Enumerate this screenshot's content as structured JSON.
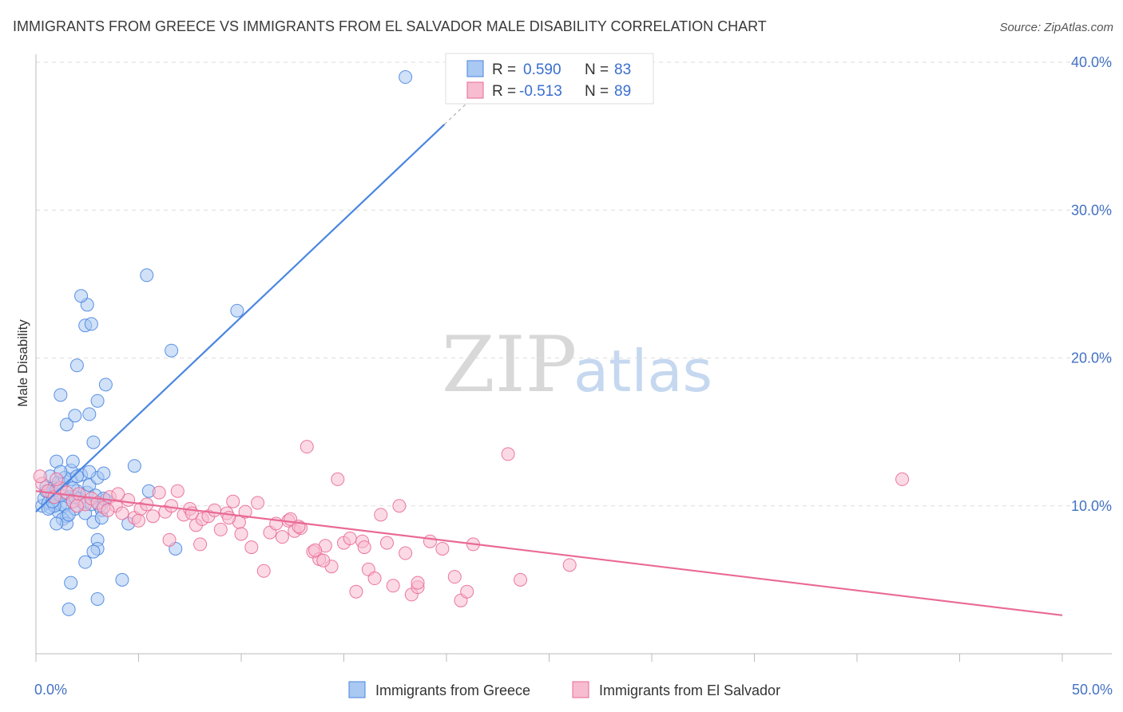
{
  "chart_data": {
    "type": "scatter",
    "title": "IMMIGRANTS FROM GREECE VS IMMIGRANTS FROM EL SALVADOR MALE DISABILITY CORRELATION CHART",
    "source": "Source: ZipAtlas.com",
    "ylabel": "Male Disability",
    "xlim": [
      0,
      50
    ],
    "ylim": [
      0,
      40
    ],
    "x_tick_labels": [
      "0.0%",
      "50.0%"
    ],
    "y_ticks": [
      10,
      20,
      30,
      40
    ],
    "y_tick_labels": [
      "10.0%",
      "20.0%",
      "30.0%",
      "40.0%"
    ],
    "grid": true,
    "watermark": {
      "zip": "ZIP",
      "atlas": "atlas"
    },
    "legend": {
      "r_label": "R =",
      "n_label": "N =",
      "entries": [
        {
          "name": "Immigrants from Greece",
          "r": "0.590",
          "n": "83",
          "color": "#4a86e0"
        },
        {
          "name": "Immigrants from El Salvador",
          "r": "-0.513",
          "n": "89",
          "color": "#e96a95"
        }
      ]
    },
    "series": [
      {
        "name": "Immigrants from Greece",
        "color": "#4a86e0",
        "fill": "#a9c8f2",
        "trend": {
          "x0": 0,
          "y0": 9.6,
          "x1": 19.9,
          "y1": 35.8,
          "dash_to_x": 22.0
        },
        "points": [
          [
            0.3,
            10.0
          ],
          [
            0.4,
            10.5
          ],
          [
            0.5,
            11.0
          ],
          [
            0.6,
            10.2
          ],
          [
            0.7,
            9.9
          ],
          [
            0.8,
            10.8
          ],
          [
            0.9,
            11.2
          ],
          [
            1.0,
            10.4
          ],
          [
            1.1,
            9.6
          ],
          [
            1.2,
            10.1
          ],
          [
            1.3,
            11.5
          ],
          [
            1.4,
            10.0
          ],
          [
            1.5,
            9.3
          ],
          [
            1.6,
            10.6
          ],
          [
            1.7,
            11.8
          ],
          [
            1.8,
            10.3
          ],
          [
            1.9,
            9.8
          ],
          [
            2.0,
            11.0
          ],
          [
            2.1,
            10.5
          ],
          [
            2.2,
            12.1
          ],
          [
            2.3,
            10.2
          ],
          [
            2.4,
            9.5
          ],
          [
            2.5,
            10.9
          ],
          [
            2.6,
            11.4
          ],
          [
            2.7,
            10.1
          ],
          [
            2.8,
            8.9
          ],
          [
            2.9,
            10.7
          ],
          [
            3.0,
            11.9
          ],
          [
            3.1,
            10.0
          ],
          [
            3.2,
            9.7
          ],
          [
            3.3,
            12.2
          ],
          [
            3.4,
            10.4
          ],
          [
            0.5,
            11.3
          ],
          [
            0.7,
            12.0
          ],
          [
            0.9,
            10.0
          ],
          [
            1.1,
            11.6
          ],
          [
            1.3,
            9.1
          ],
          [
            1.5,
            8.8
          ],
          [
            1.7,
            12.4
          ],
          [
            1.9,
            10.6
          ],
          [
            0.6,
            9.8
          ],
          [
            0.8,
            10.3
          ],
          [
            1.0,
            11.1
          ],
          [
            1.2,
            10.7
          ],
          [
            1.4,
            11.9
          ],
          [
            1.6,
            9.4
          ],
          [
            1.8,
            11.2
          ],
          [
            2.0,
            12.0
          ],
          [
            1.0,
            13.0
          ],
          [
            1.2,
            12.3
          ],
          [
            1.8,
            13.0
          ],
          [
            2.6,
            12.3
          ],
          [
            2.8,
            14.3
          ],
          [
            1.5,
            15.5
          ],
          [
            1.2,
            17.5
          ],
          [
            1.9,
            16.1
          ],
          [
            2.0,
            19.5
          ],
          [
            2.6,
            16.2
          ],
          [
            3.0,
            17.1
          ],
          [
            3.4,
            18.2
          ],
          [
            2.4,
            22.2
          ],
          [
            2.7,
            22.3
          ],
          [
            2.5,
            23.6
          ],
          [
            2.2,
            24.2
          ],
          [
            5.4,
            25.6
          ],
          [
            6.6,
            20.5
          ],
          [
            9.8,
            23.2
          ],
          [
            4.8,
            12.7
          ],
          [
            5.5,
            11.0
          ],
          [
            3.3,
            10.5
          ],
          [
            3.2,
            9.2
          ],
          [
            4.5,
            8.8
          ],
          [
            3.0,
            7.7
          ],
          [
            3.0,
            7.1
          ],
          [
            2.4,
            6.2
          ],
          [
            6.8,
            7.1
          ],
          [
            1.7,
            4.8
          ],
          [
            4.2,
            5.0
          ],
          [
            1.6,
            3.0
          ],
          [
            3.0,
            3.7
          ],
          [
            1.0,
            8.8
          ],
          [
            2.8,
            6.9
          ],
          [
            18.0,
            39.0
          ]
        ]
      },
      {
        "name": "Immigrants from El Salvador",
        "color": "#e96a95",
        "fill": "#f7bcd0",
        "trend": {
          "x0": 0,
          "y0": 11.0,
          "x1": 50,
          "y1": 2.6
        },
        "points": [
          [
            0.3,
            11.5
          ],
          [
            0.6,
            11.0
          ],
          [
            0.9,
            10.6
          ],
          [
            1.2,
            11.2
          ],
          [
            1.5,
            10.9
          ],
          [
            1.8,
            10.3
          ],
          [
            2.1,
            10.8
          ],
          [
            2.4,
            10.1
          ],
          [
            2.7,
            10.5
          ],
          [
            3.0,
            10.2
          ],
          [
            3.3,
            9.9
          ],
          [
            3.6,
            10.6
          ],
          [
            3.9,
            10.0
          ],
          [
            4.2,
            9.5
          ],
          [
            4.5,
            10.4
          ],
          [
            4.8,
            9.2
          ],
          [
            5.1,
            9.8
          ],
          [
            5.4,
            10.1
          ],
          [
            5.7,
            9.3
          ],
          [
            6.0,
            10.9
          ],
          [
            6.3,
            9.6
          ],
          [
            6.6,
            10.0
          ],
          [
            6.9,
            11.0
          ],
          [
            7.2,
            9.4
          ],
          [
            7.5,
            9.8
          ],
          [
            7.8,
            8.7
          ],
          [
            8.1,
            9.1
          ],
          [
            8.4,
            9.3
          ],
          [
            8.7,
            9.7
          ],
          [
            9.0,
            8.4
          ],
          [
            9.3,
            9.5
          ],
          [
            9.6,
            10.3
          ],
          [
            9.9,
            8.9
          ],
          [
            10.2,
            9.6
          ],
          [
            10.5,
            7.2
          ],
          [
            10.8,
            10.2
          ],
          [
            11.1,
            5.6
          ],
          [
            11.4,
            8.2
          ],
          [
            11.7,
            8.8
          ],
          [
            12.0,
            7.9
          ],
          [
            12.3,
            9.0
          ],
          [
            12.6,
            8.3
          ],
          [
            12.9,
            8.5
          ],
          [
            13.2,
            14.0
          ],
          [
            13.5,
            6.9
          ],
          [
            13.8,
            6.4
          ],
          [
            14.1,
            7.3
          ],
          [
            14.4,
            5.9
          ],
          [
            14.7,
            11.8
          ],
          [
            15.0,
            7.5
          ],
          [
            15.3,
            7.8
          ],
          [
            15.6,
            4.2
          ],
          [
            15.9,
            7.6
          ],
          [
            16.2,
            5.7
          ],
          [
            16.5,
            5.1
          ],
          [
            16.8,
            9.4
          ],
          [
            17.1,
            7.5
          ],
          [
            17.4,
            4.6
          ],
          [
            17.7,
            10.0
          ],
          [
            18.0,
            6.8
          ],
          [
            18.3,
            4.0
          ],
          [
            18.6,
            4.5
          ],
          [
            19.2,
            7.6
          ],
          [
            19.8,
            7.1
          ],
          [
            20.4,
            5.2
          ],
          [
            20.7,
            3.6
          ],
          [
            21.0,
            4.2
          ],
          [
            21.3,
            7.4
          ],
          [
            23.0,
            13.5
          ],
          [
            23.6,
            5.0
          ],
          [
            26.0,
            6.0
          ],
          [
            42.2,
            11.8
          ],
          [
            1.0,
            11.8
          ],
          [
            2.0,
            10.0
          ],
          [
            3.5,
            9.7
          ],
          [
            4.0,
            10.8
          ],
          [
            5.0,
            9.0
          ],
          [
            6.5,
            7.7
          ],
          [
            7.6,
            9.5
          ],
          [
            8.0,
            7.4
          ],
          [
            9.4,
            9.2
          ],
          [
            10.0,
            8.1
          ],
          [
            12.4,
            9.1
          ],
          [
            12.8,
            8.6
          ],
          [
            13.6,
            7.0
          ],
          [
            14.0,
            6.3
          ],
          [
            16.0,
            7.2
          ],
          [
            18.6,
            4.8
          ],
          [
            0.2,
            12.0
          ]
        ]
      }
    ]
  }
}
